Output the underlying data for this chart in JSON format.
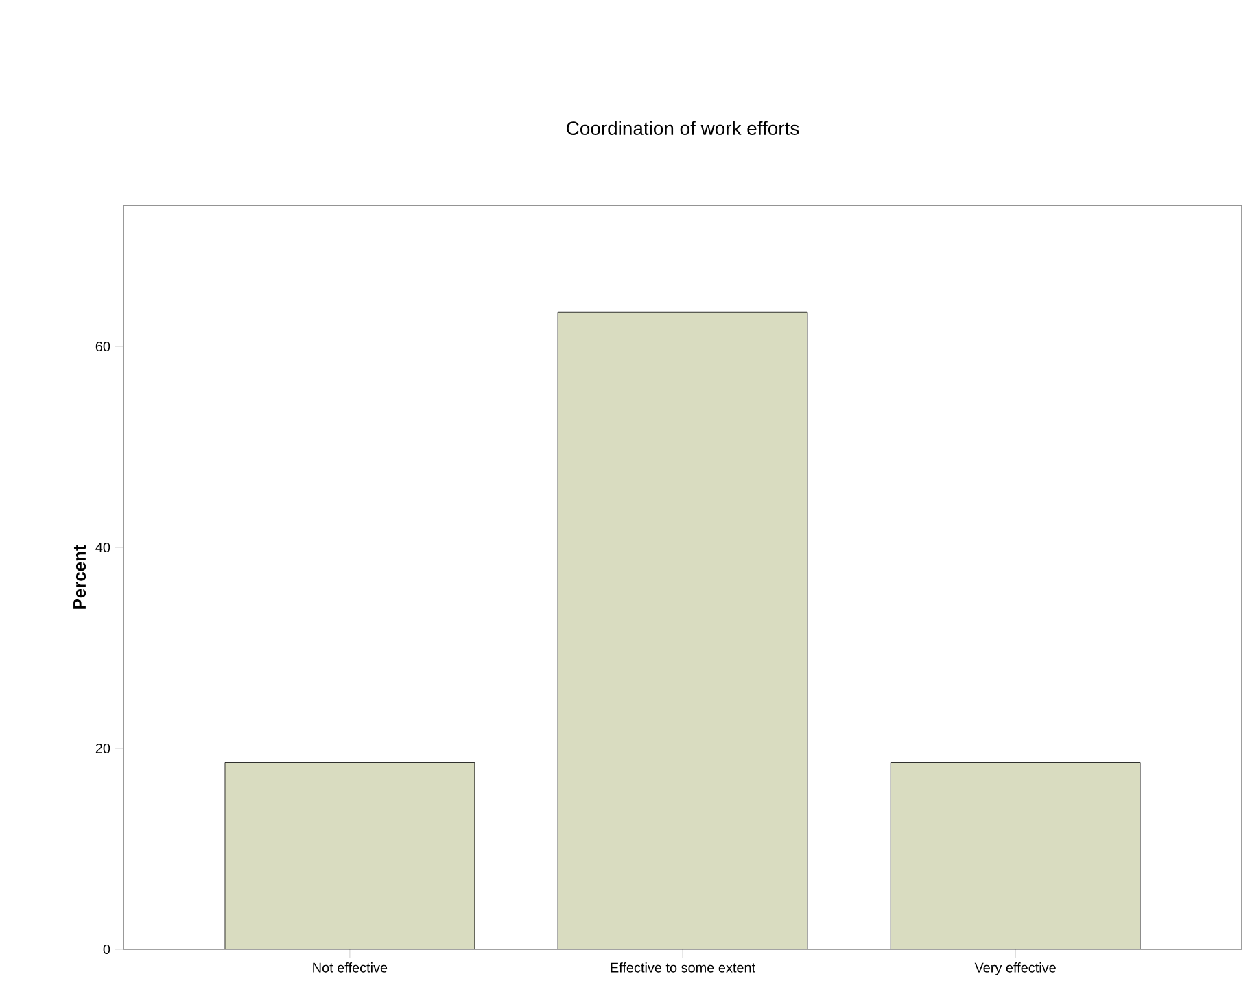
{
  "chart_data": {
    "type": "bar",
    "title": "Coordination of work efforts",
    "ylabel": "Percent",
    "categories": [
      "Not effective",
      "Effective to some extent",
      "Very effective"
    ],
    "values": [
      18.6,
      63.4,
      18.6
    ],
    "color": "#d9dcc0",
    "ylim": [
      0,
      74
    ],
    "yticks": [
      0,
      20,
      40,
      60
    ]
  }
}
